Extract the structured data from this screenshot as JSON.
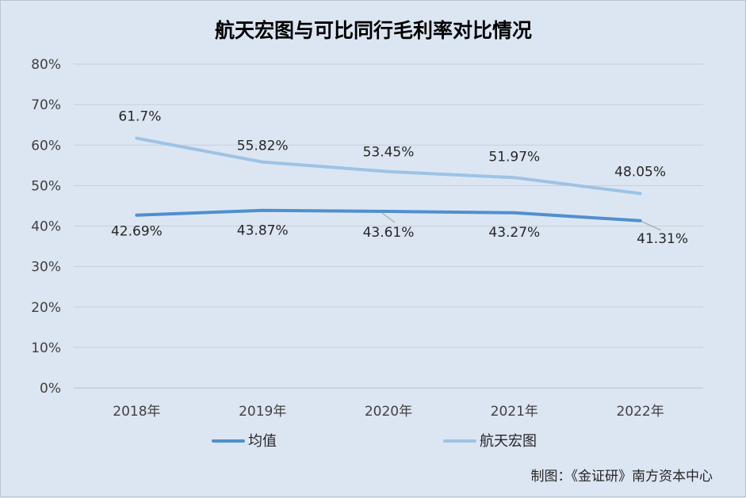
{
  "chart_data": {
    "type": "line",
    "title": "航天宏图与可比同行毛利率对比情况",
    "categories": [
      "2018年",
      "2019年",
      "2020年",
      "2021年",
      "2022年"
    ],
    "y_ticks": [
      "0%",
      "10%",
      "20%",
      "30%",
      "40%",
      "50%",
      "60%",
      "70%",
      "80%"
    ],
    "ylim": [
      0,
      80
    ],
    "grid": true,
    "legend_position": "bottom",
    "series": [
      {
        "name": "均值",
        "values": [
          42.69,
          43.87,
          43.61,
          43.27,
          41.31
        ],
        "labels": [
          "42.69%",
          "43.87%",
          "43.61%",
          "43.27%",
          "41.31%"
        ],
        "color": "#4f8fd0"
      },
      {
        "name": "航天宏图",
        "values": [
          61.7,
          55.82,
          53.45,
          51.97,
          48.05
        ],
        "labels": [
          "61.7%",
          "55.82%",
          "53.45%",
          "51.97%",
          "48.05%"
        ],
        "color": "#9dc3e6"
      }
    ]
  },
  "credit": "制图：《金证研》南方资本中心"
}
